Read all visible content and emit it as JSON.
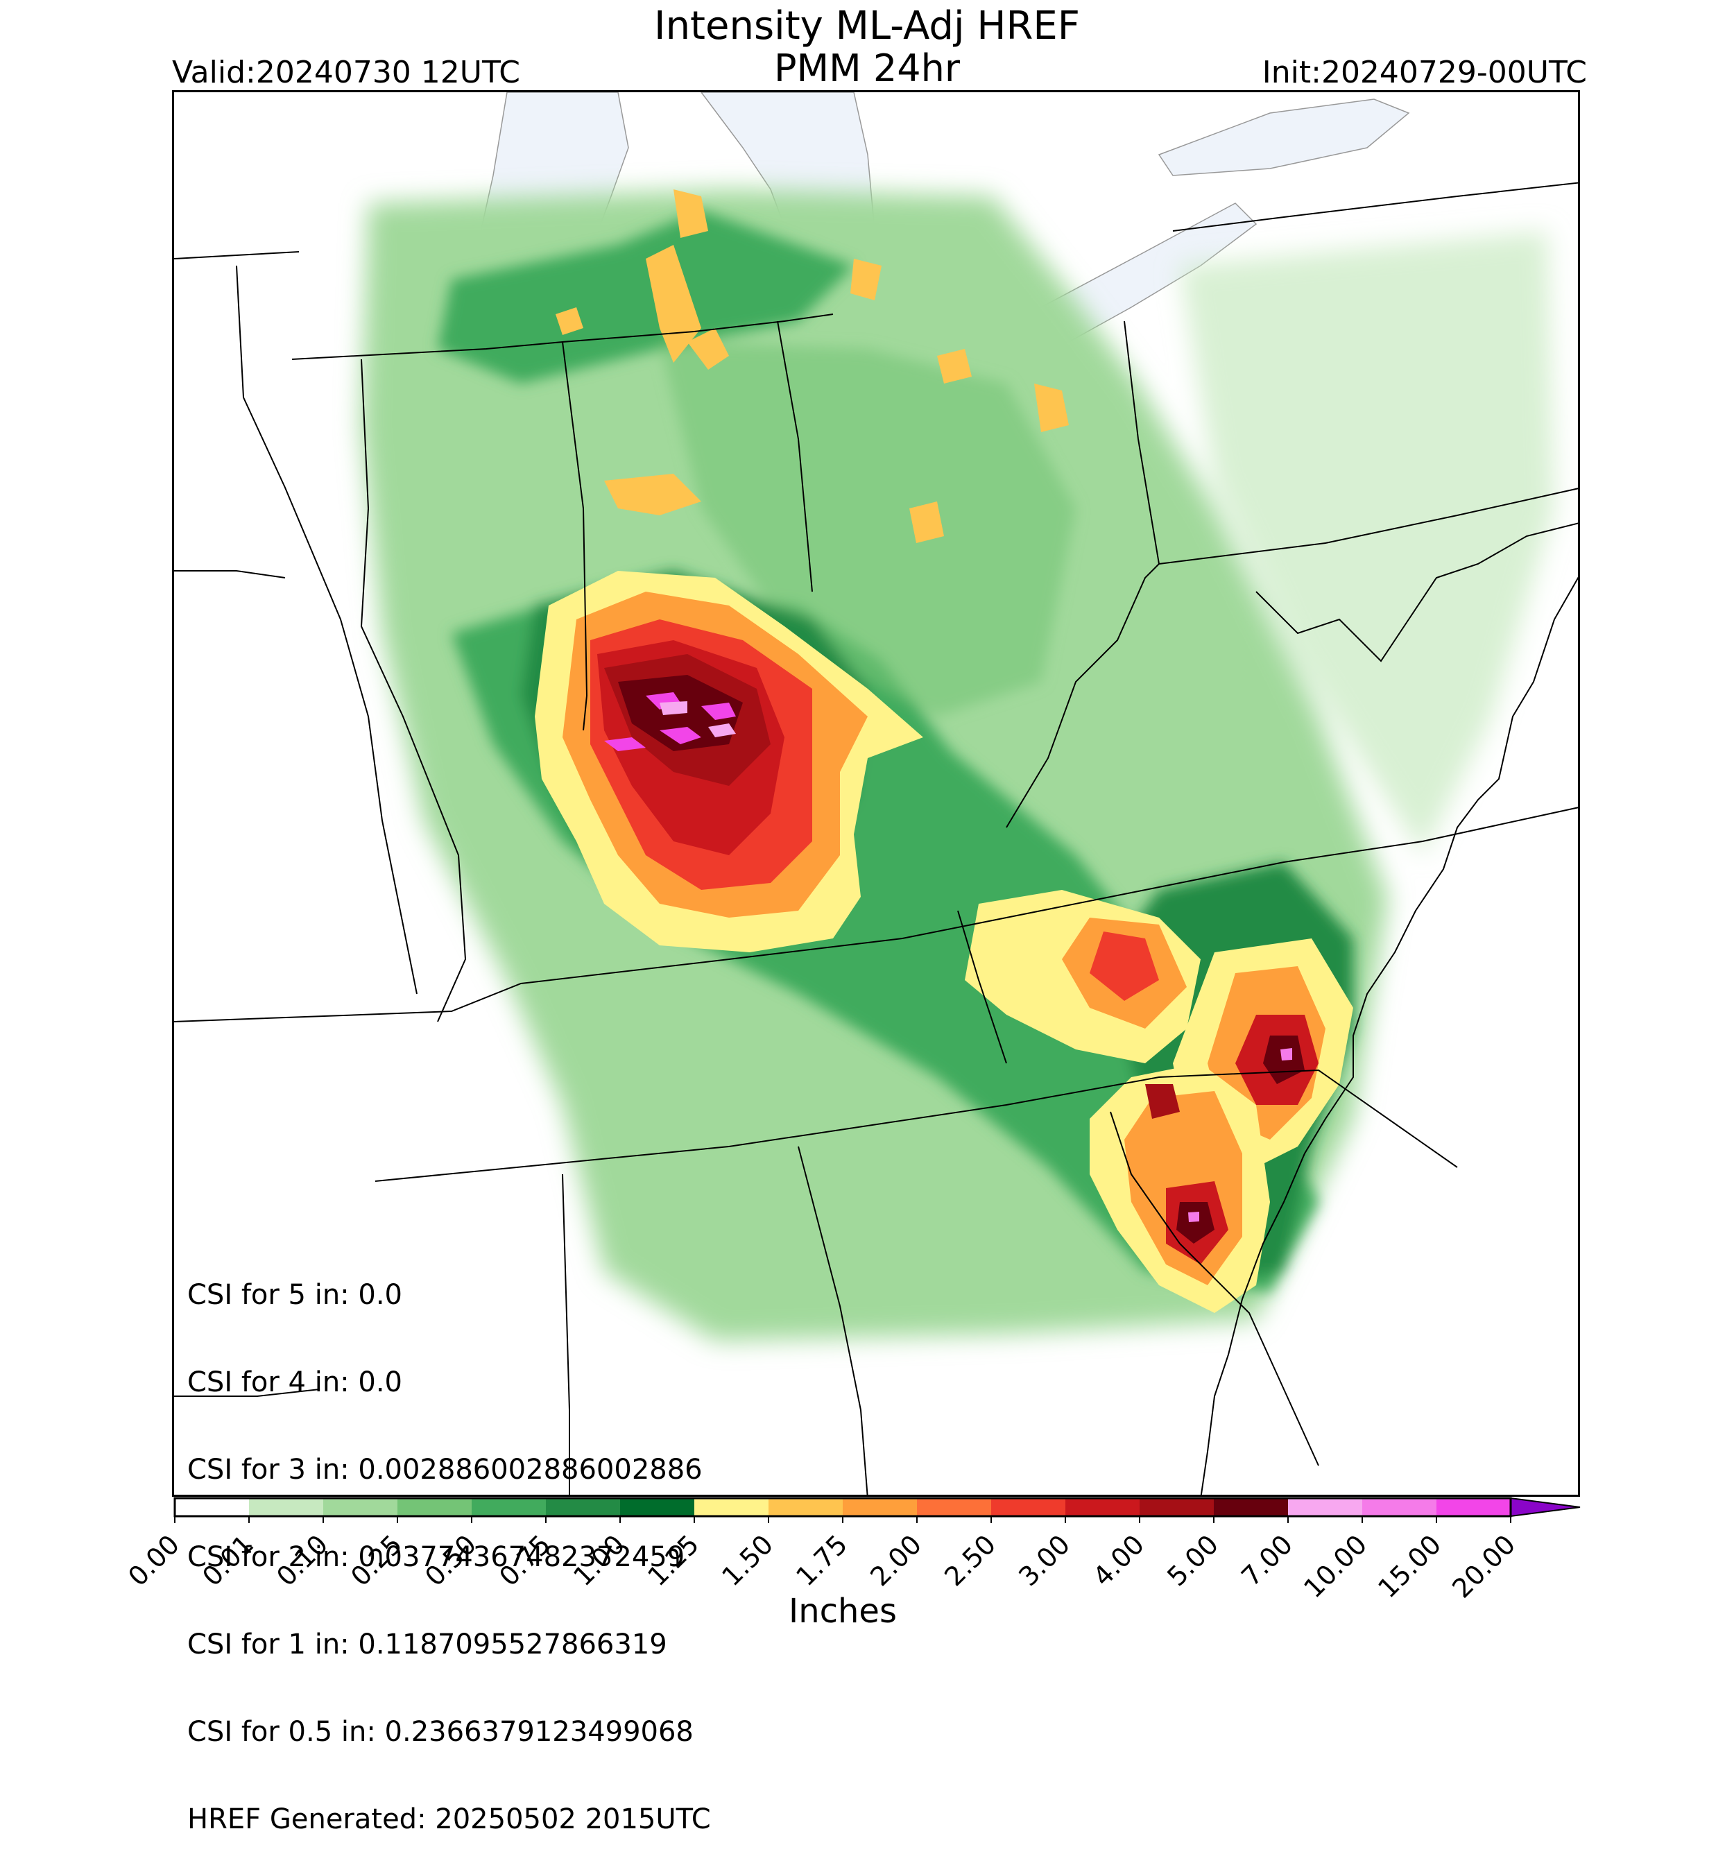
{
  "header": {
    "title_line1": "Intensity ML-Adj HREF",
    "title_line2": "PMM 24hr",
    "valid": "Valid:20240730 12UTC",
    "init": "Init:20240729-00UTC"
  },
  "map": {
    "product": "24hr probability-matched mean precipitation",
    "regions": "Great Lakes / Ohio Valley / Southeast US",
    "water_color": "#eef3fa",
    "border_color": "#000000"
  },
  "stats": {
    "lines": [
      "CSI for 5 in: 0.0",
      "CSI for 4 in: 0.0",
      "CSI for 3 in: 0.002886002886002886",
      "CSI for 2 in: 0.03774367482372459",
      "CSI for 1 in: 0.1187095527866319",
      "CSI for 0.5 in: 0.2366379123499068",
      "HREF Generated: 20250502 2015UTC"
    ]
  },
  "colorbar": {
    "label": "Inches",
    "ticks": [
      "0.00",
      "0.01",
      "0.10",
      "0.25",
      "0.50",
      "0.75",
      "1.00",
      "1.25",
      "1.50",
      "1.75",
      "2.00",
      "2.50",
      "3.00",
      "4.00",
      "5.00",
      "7.00",
      "10.00",
      "15.00",
      "20.00"
    ],
    "colors": [
      "#ffffff",
      "#c7e9c0",
      "#a1d99b",
      "#74c476",
      "#41ab5d",
      "#238b45",
      "#006d2c",
      "#fff38a",
      "#fec44f",
      "#fe9f3b",
      "#fd7038",
      "#ef3b2c",
      "#cb181d",
      "#a50f15",
      "#67000d",
      "#f7a8f0",
      "#f57be9",
      "#f245e8",
      "#db12ee",
      "#8a05c8"
    ]
  }
}
